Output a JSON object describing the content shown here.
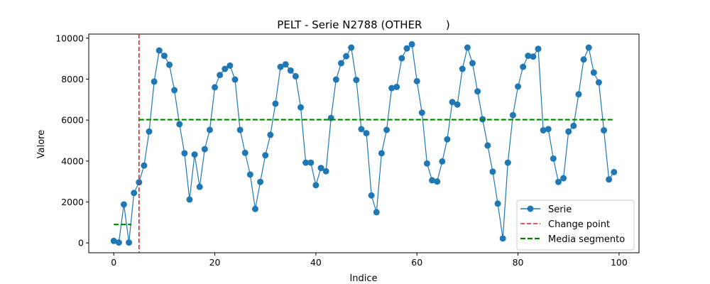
{
  "chart_data": {
    "type": "line",
    "title": "PELT - Serie N2788 (OTHER       )",
    "xlabel": "Indice",
    "ylabel": "Valore",
    "xlim": [
      -4.95,
      103.95
    ],
    "ylim": [
      -480,
      10200
    ],
    "xticks": [
      0,
      20,
      40,
      60,
      80,
      100
    ],
    "yticks": [
      0,
      2000,
      4000,
      6000,
      8000,
      10000
    ],
    "grid": false,
    "legend_position": "lower-right",
    "series": [
      {
        "name": "Serie",
        "color": "#1f77b4",
        "x": [
          0,
          1,
          2,
          3,
          4,
          5,
          6,
          7,
          8,
          9,
          10,
          11,
          12,
          13,
          14,
          15,
          16,
          17,
          18,
          19,
          20,
          21,
          22,
          23,
          24,
          25,
          26,
          27,
          28,
          29,
          30,
          31,
          32,
          33,
          34,
          35,
          36,
          37,
          38,
          39,
          40,
          41,
          42,
          43,
          44,
          45,
          46,
          47,
          48,
          49,
          50,
          51,
          52,
          53,
          54,
          55,
          56,
          57,
          58,
          59,
          60,
          61,
          62,
          63,
          64,
          65,
          66,
          67,
          68,
          69,
          70,
          71,
          72,
          73,
          74,
          75,
          76,
          77,
          78,
          79,
          80,
          81,
          82,
          83,
          84,
          85,
          86,
          87,
          88,
          89,
          90,
          91,
          92,
          93,
          94,
          95,
          96,
          97,
          98,
          99
        ],
        "y": [
          100,
          20,
          1880,
          20,
          2440,
          2960,
          3780,
          5440,
          7880,
          9400,
          9140,
          8700,
          7460,
          5800,
          4380,
          2120,
          4320,
          2740,
          4580,
          5520,
          7600,
          8200,
          8500,
          8660,
          7980,
          5520,
          4400,
          3340,
          1660,
          2980,
          4280,
          5280,
          6800,
          8600,
          8720,
          8420,
          8140,
          6620,
          3920,
          3920,
          2820,
          3660,
          3500,
          6100,
          7980,
          8780,
          9120,
          9540,
          7960,
          5560,
          5360,
          2320,
          1500,
          4380,
          5520,
          7560,
          7620,
          9020,
          9500,
          9700,
          7900,
          6360,
          3880,
          3060,
          3000,
          3980,
          5060,
          6880,
          6760,
          8500,
          9540,
          8780,
          7400,
          6040,
          4760,
          3480,
          1920,
          220,
          3920,
          6240,
          7640,
          8600,
          9140,
          9100,
          9480,
          5500,
          5560,
          4120,
          2980,
          3160,
          5440,
          5720,
          7260,
          8960,
          9540,
          8320,
          7840,
          5500,
          3100,
          3460
        ]
      },
      {
        "name": "Change point",
        "color": "#d62728",
        "style": "dashed",
        "x": 5
      },
      {
        "name": "Media segmento",
        "color": "#008000",
        "style": "dashed",
        "segments": [
          {
            "x": [
              0,
              3.5
            ],
            "y": 900
          },
          {
            "x": [
              5,
              99
            ],
            "y": 6020
          }
        ]
      }
    ]
  }
}
